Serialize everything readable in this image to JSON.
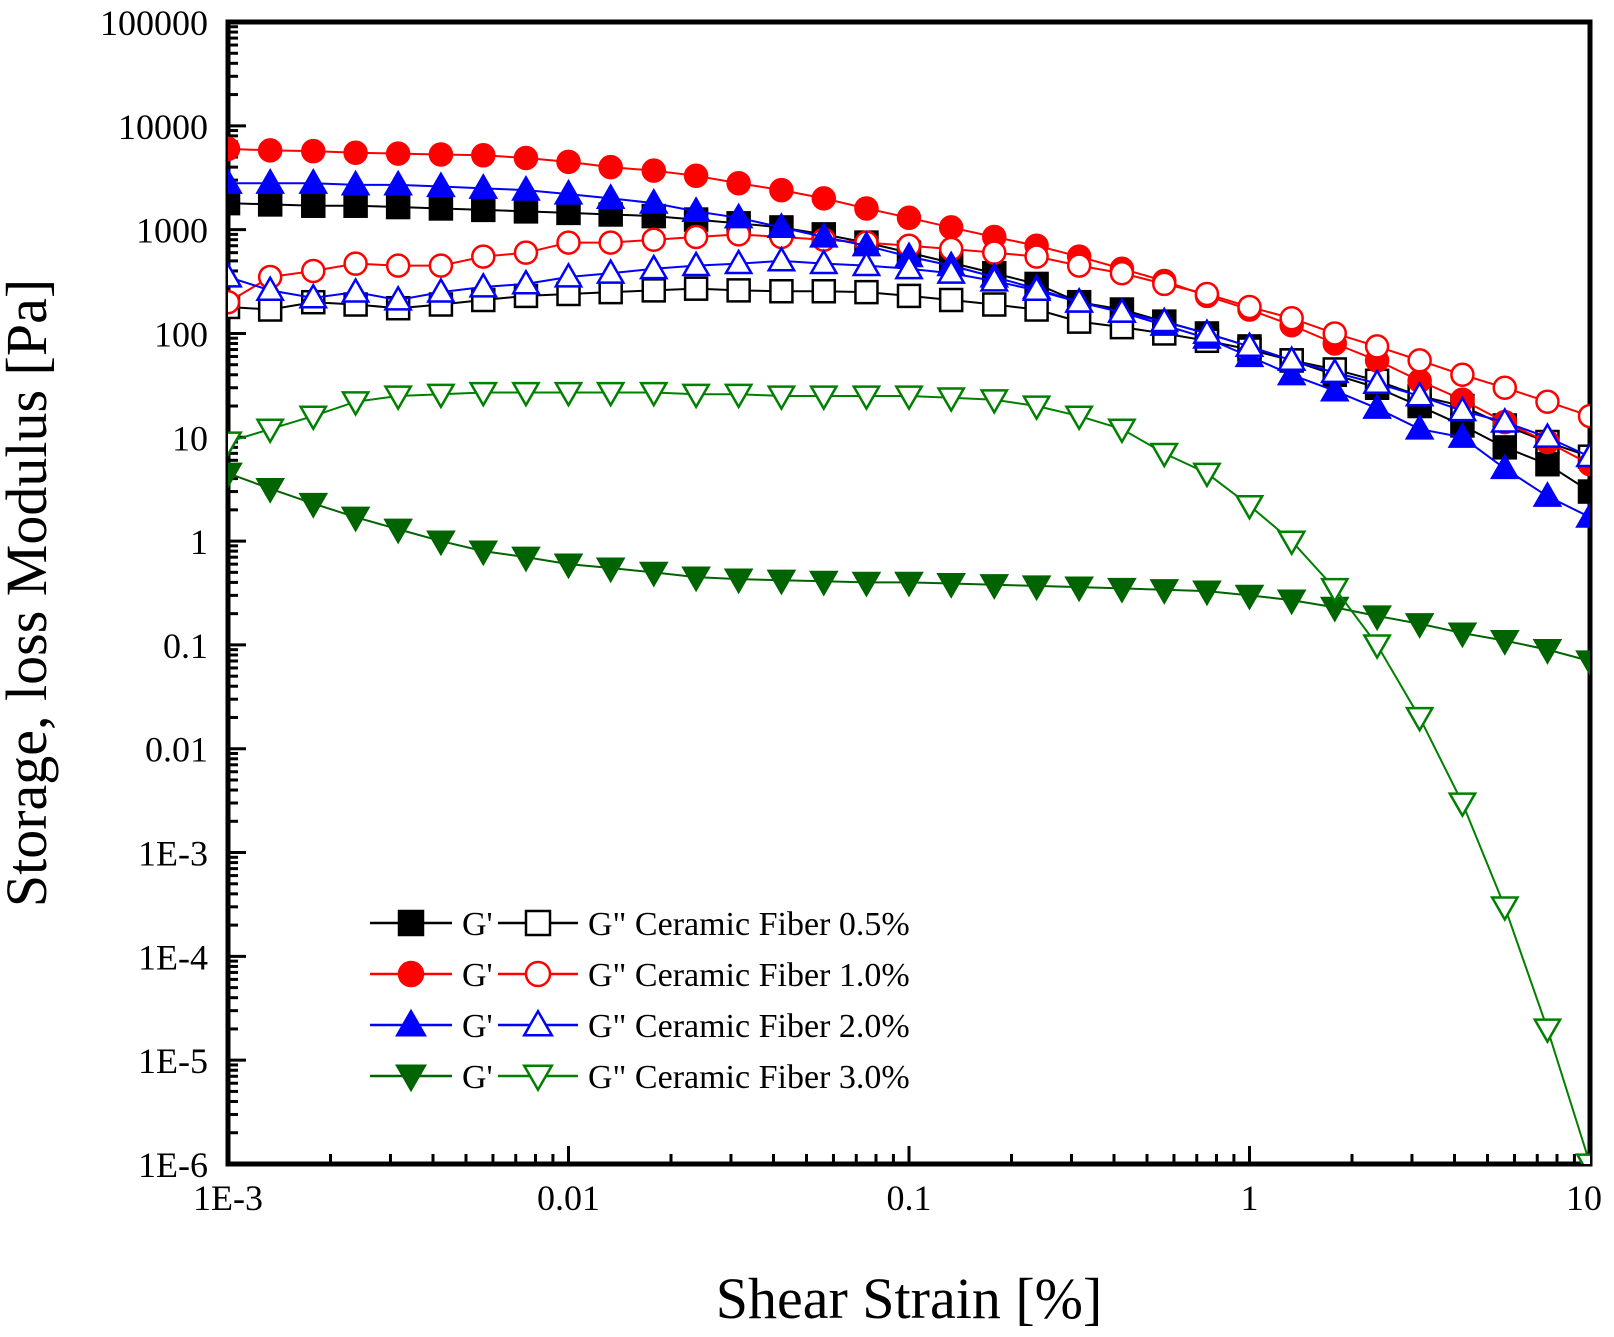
{
  "chart_data": {
    "type": "line",
    "xlabel": "Shear Strain [%]",
    "ylabel": "Storage, loss Modulus [Pa]",
    "x_scale": "log",
    "y_scale": "log",
    "xlim": [
      0.001,
      10
    ],
    "ylim": [
      1e-06,
      100000
    ],
    "x_ticks": [
      {
        "value": 0.001,
        "label": "1E-3"
      },
      {
        "value": 0.01,
        "label": "0.01"
      },
      {
        "value": 0.1,
        "label": "0.1"
      },
      {
        "value": 1,
        "label": "1"
      },
      {
        "value": 10,
        "label": "10"
      }
    ],
    "y_ticks": [
      {
        "value": 100000,
        "label": "100000"
      },
      {
        "value": 10000,
        "label": "10000"
      },
      {
        "value": 1000,
        "label": "1000"
      },
      {
        "value": 100,
        "label": "100"
      },
      {
        "value": 10,
        "label": "10"
      },
      {
        "value": 1,
        "label": "1"
      },
      {
        "value": 0.1,
        "label": "0.1"
      },
      {
        "value": 0.01,
        "label": "0.01"
      },
      {
        "value": 0.001,
        "label": "1E-3"
      },
      {
        "value": 0.0001,
        "label": "1E-4"
      },
      {
        "value": 1e-05,
        "label": "1E-5"
      },
      {
        "value": 1e-06,
        "label": "1E-6"
      }
    ],
    "grid": false,
    "legend_position": "bottom-left",
    "legend": [
      {
        "gp_label": "G'",
        "gpp_label": "G\" Ceramic Fiber 0.5%",
        "gp_series": 0,
        "gpp_series": 1
      },
      {
        "gp_label": "G'",
        "gpp_label": "G\" Ceramic Fiber 1.0%",
        "gp_series": 2,
        "gpp_series": 3
      },
      {
        "gp_label": "G'",
        "gpp_label": "G\" Ceramic Fiber 2.0%",
        "gp_series": 4,
        "gpp_series": 5
      },
      {
        "gp_label": "G'",
        "gpp_label": "G\" Ceramic Fiber 3.0%",
        "gp_series": 6,
        "gpp_series": 7
      }
    ],
    "x": [
      0.001,
      0.00133,
      0.00178,
      0.00237,
      0.00316,
      0.00422,
      0.00562,
      0.0075,
      0.01,
      0.0133,
      0.0178,
      0.0237,
      0.0316,
      0.0422,
      0.0562,
      0.075,
      0.1,
      0.133,
      0.178,
      0.237,
      0.316,
      0.422,
      0.562,
      0.75,
      1,
      1.33,
      1.78,
      2.37,
      3.16,
      4.22,
      5.62,
      7.5,
      10
    ],
    "series": [
      {
        "color": "#000000",
        "marker": "square",
        "filled": true,
        "values": [
          1800,
          1750,
          1700,
          1700,
          1650,
          1600,
          1550,
          1500,
          1450,
          1400,
          1350,
          1250,
          1150,
          1050,
          900,
          750,
          600,
          480,
          380,
          300,
          200,
          170,
          130,
          100,
          75,
          55,
          40,
          30,
          20,
          13,
          8,
          5.5,
          3
        ]
      },
      {
        "color": "#000000",
        "marker": "square",
        "filled": false,
        "values": [
          180,
          170,
          200,
          190,
          175,
          190,
          210,
          230,
          240,
          250,
          260,
          270,
          260,
          255,
          255,
          250,
          230,
          210,
          190,
          170,
          130,
          115,
          100,
          85,
          70,
          55,
          45,
          35,
          25,
          20,
          13,
          9,
          6.5
        ]
      },
      {
        "color": "#ff0000",
        "marker": "circle",
        "filled": true,
        "values": [
          6000,
          5800,
          5700,
          5500,
          5400,
          5300,
          5200,
          4900,
          4500,
          4000,
          3700,
          3300,
          2800,
          2400,
          2000,
          1600,
          1300,
          1050,
          850,
          700,
          550,
          420,
          320,
          230,
          170,
          120,
          80,
          55,
          35,
          23,
          14,
          9,
          5.5
        ]
      },
      {
        "color": "#ff0000",
        "marker": "circle",
        "filled": false,
        "values": [
          200,
          350,
          400,
          470,
          450,
          450,
          550,
          600,
          750,
          750,
          800,
          850,
          900,
          850,
          800,
          750,
          700,
          650,
          600,
          550,
          450,
          380,
          300,
          240,
          180,
          140,
          100,
          75,
          55,
          40,
          30,
          22,
          16
        ]
      },
      {
        "color": "#0000ff",
        "marker": "triangle-up",
        "filled": true,
        "values": [
          2800,
          2800,
          2800,
          2700,
          2700,
          2600,
          2500,
          2400,
          2200,
          2000,
          1800,
          1500,
          1300,
          1050,
          850,
          700,
          550,
          450,
          350,
          270,
          200,
          160,
          120,
          90,
          60,
          40,
          28,
          19,
          12,
          10,
          5,
          2.7,
          1.7
        ]
      },
      {
        "color": "#0000ff",
        "marker": "triangle-up",
        "filled": false,
        "values": [
          350,
          260,
          220,
          250,
          210,
          250,
          280,
          300,
          350,
          380,
          420,
          450,
          470,
          500,
          470,
          450,
          420,
          380,
          320,
          260,
          200,
          160,
          130,
          100,
          75,
          55,
          42,
          33,
          25,
          18,
          14,
          10,
          6.5
        ]
      },
      {
        "color": "#006400",
        "marker": "triangle-down",
        "filled": true,
        "values": [
          4.5,
          3.2,
          2.3,
          1.7,
          1.3,
          1,
          0.8,
          0.7,
          0.6,
          0.55,
          0.5,
          0.45,
          0.43,
          0.42,
          0.41,
          0.4,
          0.4,
          0.39,
          0.38,
          0.37,
          0.36,
          0.35,
          0.34,
          0.33,
          0.3,
          0.27,
          0.23,
          0.19,
          0.16,
          0.13,
          0.11,
          0.09,
          0.07
        ]
      },
      {
        "color": "#008000",
        "marker": "triangle-down",
        "filled": false,
        "values": [
          9,
          12,
          16,
          22,
          25,
          26,
          27,
          27,
          27,
          27,
          27,
          26,
          26,
          25,
          25,
          25,
          25,
          24,
          23,
          20,
          16,
          12,
          7,
          4.5,
          2.2,
          1,
          0.35,
          0.1,
          0.02,
          0.003,
          0.0003,
          2e-05,
          1e-06
        ]
      }
    ]
  }
}
